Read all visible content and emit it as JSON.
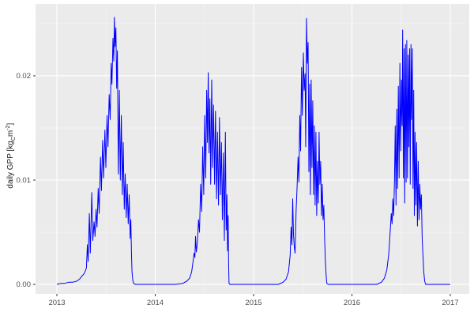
{
  "figure": {
    "ylabel_parts": {
      "prefix": "daily GPP [kg",
      "sub": "C",
      "mid": "m",
      "sup": "-2",
      "suffix": "]"
    }
  },
  "colors": {
    "panel_bg": "#EBEBEB",
    "grid_major": "#FFFFFF",
    "grid_minor": "#F5F5F5",
    "line": "#0000FF",
    "tick_label": "#4D4D4D",
    "tick_mark": "#333333",
    "axis_title": "#1A1A1A"
  },
  "chart_data": {
    "type": "line",
    "title": "",
    "xlabel": "",
    "ylabel": "daily GPP [kg_C m^-2]",
    "legend": "none",
    "grid": "on",
    "xlim": [
      2012.783,
      2017.193
    ],
    "ylim": [
      -0.00091,
      0.02689
    ],
    "x_ticks": [
      {
        "label": "2013",
        "value": 2013
      },
      {
        "label": "2014",
        "value": 2014
      },
      {
        "label": "2015",
        "value": 2015
      },
      {
        "label": "2016",
        "value": 2016
      },
      {
        "label": "2017",
        "value": 2017
      }
    ],
    "y_ticks": [
      {
        "label": "0.00",
        "value": 0.0
      },
      {
        "label": "0.01",
        "value": 0.01
      },
      {
        "label": "0.02",
        "value": 0.02
      }
    ],
    "minor_x": [
      2013.5,
      2014.5,
      2015.5,
      2016.5
    ],
    "minor_y": [
      0.005,
      0.015,
      0.025
    ],
    "series": [
      {
        "name": "GPP",
        "color": "#0000FF",
        "points": [
          [
            2013.0,
            0
          ],
          [
            2013.04,
            0.0001
          ],
          [
            2013.08,
            0.0001
          ],
          [
            2013.12,
            0.0002
          ],
          [
            2013.16,
            0.0002
          ],
          [
            2013.2,
            0.0003
          ],
          [
            2013.23,
            0.0005
          ],
          [
            2013.255,
            0.0008
          ],
          [
            2013.275,
            0.001
          ],
          [
            2013.29,
            0.0013
          ],
          [
            2013.3,
            0.0016
          ],
          [
            2013.31,
            0.0038
          ],
          [
            2013.318,
            0.0022
          ],
          [
            2013.33,
            0.0068
          ],
          [
            2013.34,
            0.003
          ],
          [
            2013.355,
            0.0088
          ],
          [
            2013.365,
            0.0042
          ],
          [
            2013.378,
            0.006
          ],
          [
            2013.388,
            0.0046
          ],
          [
            2013.398,
            0.0072
          ],
          [
            2013.408,
            0.0055
          ],
          [
            2013.42,
            0.0092
          ],
          [
            2013.43,
            0.0068
          ],
          [
            2013.443,
            0.0122
          ],
          [
            2013.453,
            0.009
          ],
          [
            2013.465,
            0.0138
          ],
          [
            2013.475,
            0.0102
          ],
          [
            2013.488,
            0.0148
          ],
          [
            2013.498,
            0.0112
          ],
          [
            2013.51,
            0.0162
          ],
          [
            2013.52,
            0.0132
          ],
          [
            2013.532,
            0.0182
          ],
          [
            2013.542,
            0.0158
          ],
          [
            2013.552,
            0.0212
          ],
          [
            2013.56,
            0.0192
          ],
          [
            2013.57,
            0.0236
          ],
          [
            2013.578,
            0.0214
          ],
          [
            2013.585,
            0.0256
          ],
          [
            2013.592,
            0.0228
          ],
          [
            2013.6,
            0.0246
          ],
          [
            2013.608,
            0.0188
          ],
          [
            2013.615,
            0.0224
          ],
          [
            2013.625,
            0.0106
          ],
          [
            2013.635,
            0.0186
          ],
          [
            2013.645,
            0.01
          ],
          [
            2013.655,
            0.0162
          ],
          [
            2013.665,
            0.0086
          ],
          [
            2013.675,
            0.0136
          ],
          [
            2013.685,
            0.0072
          ],
          [
            2013.695,
            0.0106
          ],
          [
            2013.705,
            0.0064
          ],
          [
            2013.715,
            0.0096
          ],
          [
            2013.725,
            0.0058
          ],
          [
            2013.735,
            0.0086
          ],
          [
            2013.745,
            0.0044
          ],
          [
            2013.752,
            0.0062
          ],
          [
            2013.758,
            0.003
          ],
          [
            2013.764,
            0.0012
          ],
          [
            2013.772,
            0.0004
          ],
          [
            2013.78,
            0.0001
          ],
          [
            2013.8,
            0
          ],
          [
            2013.9,
            0
          ],
          [
            2014.0,
            0
          ],
          [
            2014.1,
            0
          ],
          [
            2014.2,
            0
          ],
          [
            2014.28,
            0.0001
          ],
          [
            2014.32,
            0.0003
          ],
          [
            2014.35,
            0.0006
          ],
          [
            2014.37,
            0.0012
          ],
          [
            2014.385,
            0.0022
          ],
          [
            2014.395,
            0.003
          ],
          [
            2014.403,
            0.0026
          ],
          [
            2014.41,
            0.0046
          ],
          [
            2014.418,
            0.0031
          ],
          [
            2014.428,
            0.004
          ],
          [
            2014.44,
            0.0062
          ],
          [
            2014.45,
            0.005
          ],
          [
            2014.462,
            0.0096
          ],
          [
            2014.472,
            0.007
          ],
          [
            2014.483,
            0.0132
          ],
          [
            2014.493,
            0.0086
          ],
          [
            2014.503,
            0.0162
          ],
          [
            2014.513,
            0.0102
          ],
          [
            2014.523,
            0.0186
          ],
          [
            2014.531,
            0.0136
          ],
          [
            2014.539,
            0.0203
          ],
          [
            2014.547,
            0.0126
          ],
          [
            2014.556,
            0.0178
          ],
          [
            2014.564,
            0.0096
          ],
          [
            2014.574,
            0.0196
          ],
          [
            2014.583,
            0.0112
          ],
          [
            2014.593,
            0.0172
          ],
          [
            2014.603,
            0.0096
          ],
          [
            2014.613,
            0.0166
          ],
          [
            2014.623,
            0.0082
          ],
          [
            2014.633,
            0.0146
          ],
          [
            2014.643,
            0.0076
          ],
          [
            2014.653,
            0.016
          ],
          [
            2014.663,
            0.0086
          ],
          [
            2014.673,
            0.0136
          ],
          [
            2014.683,
            0.0062
          ],
          [
            2014.693,
            0.0126
          ],
          [
            2014.703,
            0.0042
          ],
          [
            2014.713,
            0.0146
          ],
          [
            2014.721,
            0.0052
          ],
          [
            2014.729,
            0.0086
          ],
          [
            2014.735,
            0.0032
          ],
          [
            2014.741,
            0.0066
          ],
          [
            2014.746,
            0.002
          ],
          [
            2014.75,
            0.0001
          ],
          [
            2014.76,
            0
          ],
          [
            2014.9,
            0
          ],
          [
            2015.0,
            0
          ],
          [
            2015.1,
            0
          ],
          [
            2015.25,
            0
          ],
          [
            2015.3,
            0.0002
          ],
          [
            2015.33,
            0.0005
          ],
          [
            2015.355,
            0.0012
          ],
          [
            2015.372,
            0.0028
          ],
          [
            2015.382,
            0.0055
          ],
          [
            2015.39,
            0.0038
          ],
          [
            2015.398,
            0.0082
          ],
          [
            2015.406,
            0.0048
          ],
          [
            2015.414,
            0.0036
          ],
          [
            2015.422,
            0.003
          ],
          [
            2015.432,
            0.007
          ],
          [
            2015.442,
            0.0092
          ],
          [
            2015.452,
            0.0122
          ],
          [
            2015.46,
            0.0098
          ],
          [
            2015.47,
            0.0162
          ],
          [
            2015.478,
            0.0128
          ],
          [
            2015.488,
            0.0208
          ],
          [
            2015.496,
            0.0162
          ],
          [
            2015.506,
            0.0222
          ],
          [
            2015.514,
            0.0186
          ],
          [
            2015.524,
            0.0202
          ],
          [
            2015.53,
            0.0132
          ],
          [
            2015.538,
            0.0255
          ],
          [
            2015.546,
            0.0212
          ],
          [
            2015.554,
            0.0232
          ],
          [
            2015.562,
            0.0108
          ],
          [
            2015.57,
            0.0192
          ],
          [
            2015.578,
            0.0086
          ],
          [
            2015.586,
            0.0196
          ],
          [
            2015.594,
            0.0112
          ],
          [
            2015.602,
            0.0176
          ],
          [
            2015.61,
            0.0086
          ],
          [
            2015.618,
            0.0152
          ],
          [
            2015.626,
            0.0076
          ],
          [
            2015.634,
            0.0146
          ],
          [
            2015.642,
            0.0066
          ],
          [
            2015.65,
            0.0118
          ],
          [
            2015.658,
            0.0078
          ],
          [
            2015.666,
            0.0146
          ],
          [
            2015.674,
            0.0096
          ],
          [
            2015.682,
            0.0118
          ],
          [
            2015.69,
            0.0066
          ],
          [
            2015.698,
            0.0096
          ],
          [
            2015.706,
            0.0062
          ],
          [
            2015.714,
            0.0076
          ],
          [
            2015.722,
            0.0044
          ],
          [
            2015.73,
            0.0022
          ],
          [
            2015.738,
            0.0008
          ],
          [
            2015.745,
            0.0001
          ],
          [
            2015.76,
            0
          ],
          [
            2015.9,
            0
          ],
          [
            2016.0,
            0
          ],
          [
            2016.1,
            0
          ],
          [
            2016.25,
            0
          ],
          [
            2016.3,
            0.0002
          ],
          [
            2016.33,
            0.0006
          ],
          [
            2016.355,
            0.0014
          ],
          [
            2016.375,
            0.003
          ],
          [
            2016.39,
            0.0052
          ],
          [
            2016.4,
            0.0068
          ],
          [
            2016.408,
            0.0058
          ],
          [
            2016.416,
            0.0082
          ],
          [
            2016.424,
            0.0066
          ],
          [
            2016.432,
            0.0098
          ],
          [
            2016.44,
            0.0152
          ],
          [
            2016.448,
            0.0076
          ],
          [
            2016.456,
            0.0168
          ],
          [
            2016.464,
            0.0092
          ],
          [
            2016.472,
            0.019
          ],
          [
            2016.48,
            0.0102
          ],
          [
            2016.488,
            0.0212
          ],
          [
            2016.496,
            0.0128
          ],
          [
            2016.504,
            0.0196
          ],
          [
            2016.51,
            0.0152
          ],
          [
            2016.516,
            0.0244
          ],
          [
            2016.523,
            0.0102
          ],
          [
            2016.53,
            0.0226
          ],
          [
            2016.537,
            0.0078
          ],
          [
            2016.544,
            0.023
          ],
          [
            2016.551,
            0.0098
          ],
          [
            2016.558,
            0.0234
          ],
          [
            2016.565,
            0.0102
          ],
          [
            2016.572,
            0.022
          ],
          [
            2016.579,
            0.0132
          ],
          [
            2016.586,
            0.0226
          ],
          [
            2016.593,
            0.0096
          ],
          [
            2016.6,
            0.023
          ],
          [
            2016.607,
            0.0158
          ],
          [
            2016.614,
            0.0226
          ],
          [
            2016.621,
            0.0092
          ],
          [
            2016.628,
            0.0186
          ],
          [
            2016.635,
            0.0066
          ],
          [
            2016.642,
            0.0146
          ],
          [
            2016.65,
            0.0076
          ],
          [
            2016.658,
            0.0136
          ],
          [
            2016.666,
            0.0056
          ],
          [
            2016.674,
            0.0118
          ],
          [
            2016.682,
            0.0062
          ],
          [
            2016.69,
            0.0096
          ],
          [
            2016.698,
            0.0072
          ],
          [
            2016.706,
            0.0086
          ],
          [
            2016.714,
            0.0044
          ],
          [
            2016.722,
            0.0028
          ],
          [
            2016.73,
            0.0012
          ],
          [
            2016.74,
            0.0003
          ],
          [
            2016.75,
            0
          ],
          [
            2016.85,
            0
          ],
          [
            2016.95,
            0
          ],
          [
            2017.0,
            0
          ]
        ]
      }
    ]
  }
}
